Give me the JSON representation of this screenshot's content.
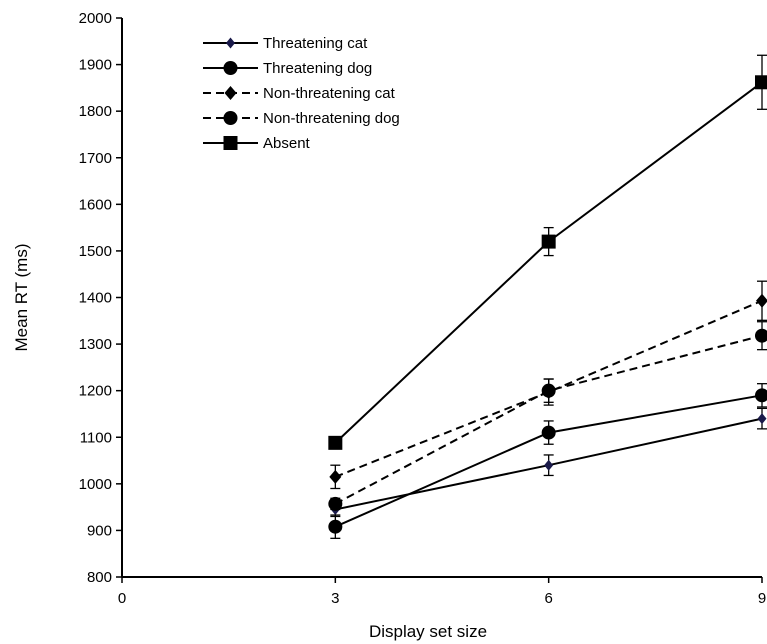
{
  "chart_data": {
    "type": "line",
    "title": "",
    "xlabel": "Display set size",
    "ylabel": "Mean RT (ms)",
    "xlim": [
      0,
      9
    ],
    "ylim": [
      800,
      2000
    ],
    "xticks": [
      "0",
      "3",
      "6",
      "9"
    ],
    "yticks": [
      "800",
      "900",
      "1000",
      "1100",
      "1200",
      "1300",
      "1400",
      "1500",
      "1600",
      "1700",
      "1800",
      "1900",
      "2000"
    ],
    "grid": false,
    "legend_position": "top-left",
    "x": [
      3,
      6,
      9
    ],
    "series": [
      {
        "name": "Threatening cat",
        "values": [
          945,
          1040,
          1140
        ],
        "errors": [
          15,
          22,
          22
        ],
        "marker": "diamond-small",
        "line_style": "solid",
        "color": "#000000",
        "marker_color": "#1a1a4a"
      },
      {
        "name": "Threatening dog",
        "values": [
          908,
          1110,
          1190
        ],
        "errors": [
          25,
          25,
          25
        ],
        "marker": "circle",
        "line_style": "solid",
        "color": "#000000",
        "marker_color": "#000000"
      },
      {
        "name": "Non-threatening cat",
        "values": [
          1015,
          1197,
          1393
        ],
        "errors": [
          25,
          28,
          42
        ],
        "marker": "diamond",
        "line_style": "dashed",
        "color": "#000000",
        "marker_color": "#000000"
      },
      {
        "name": "Non-threatening dog",
        "values": [
          957,
          1200,
          1318
        ],
        "errors": [
          12,
          25,
          30
        ],
        "marker": "circle",
        "line_style": "dashed",
        "color": "#000000",
        "marker_color": "#000000"
      },
      {
        "name": "Absent",
        "values": [
          1088,
          1520,
          1862
        ],
        "errors": [
          12,
          30,
          58
        ],
        "marker": "square",
        "line_style": "solid",
        "color": "#000000",
        "marker_color": "#000000"
      }
    ]
  }
}
